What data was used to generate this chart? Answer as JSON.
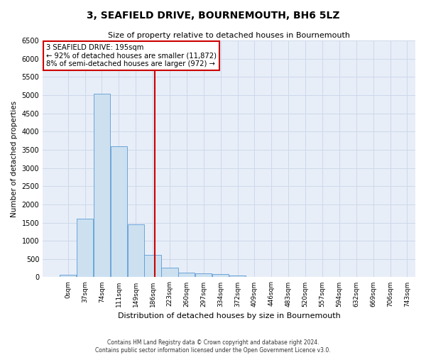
{
  "title": "3, SEAFIELD DRIVE, BOURNEMOUTH, BH6 5LZ",
  "subtitle": "Size of property relative to detached houses in Bournemouth",
  "xlabel": "Distribution of detached houses by size in Bournemouth",
  "ylabel": "Number of detached properties",
  "footnote1": "Contains HM Land Registry data © Crown copyright and database right 2024.",
  "footnote2": "Contains public sector information licensed under the Open Government Licence v3.0.",
  "bin_labels": [
    "0sqm",
    "37sqm",
    "74sqm",
    "111sqm",
    "149sqm",
    "186sqm",
    "223sqm",
    "260sqm",
    "297sqm",
    "334sqm",
    "372sqm",
    "409sqm",
    "446sqm",
    "483sqm",
    "520sqm",
    "557sqm",
    "594sqm",
    "632sqm",
    "669sqm",
    "706sqm",
    "743sqm"
  ],
  "bar_values": [
    75,
    1600,
    5050,
    3600,
    1450,
    620,
    270,
    130,
    110,
    80,
    40,
    10,
    5,
    5,
    2,
    1,
    0,
    0,
    0,
    0
  ],
  "bar_color": "#cce0f0",
  "bar_edge_color": "#5b9bd5",
  "grid_color": "#cdd8ea",
  "background_color": "#e8eef8",
  "vline_x": 5.13,
  "vline_color": "#cc0000",
  "annotation_text": "3 SEAFIELD DRIVE: 195sqm\n← 92% of detached houses are smaller (11,872)\n8% of semi-detached houses are larger (972) →",
  "annotation_box_color": "#cc0000",
  "ylim": [
    0,
    6500
  ],
  "yticks": [
    0,
    500,
    1000,
    1500,
    2000,
    2500,
    3000,
    3500,
    4000,
    4500,
    5000,
    5500,
    6000,
    6500
  ]
}
